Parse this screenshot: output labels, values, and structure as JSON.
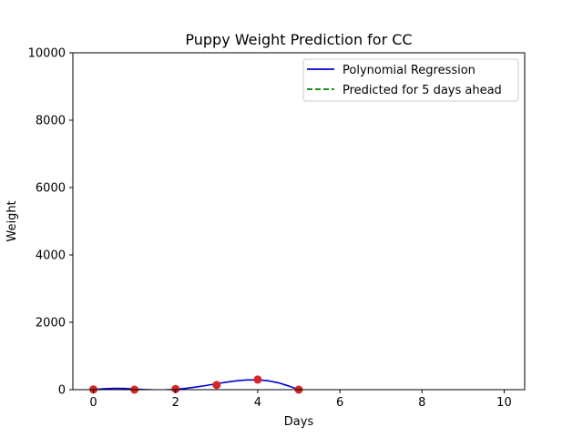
{
  "chart_data": {
    "type": "scatter",
    "title": "Puppy Weight Prediction for CC",
    "xlabel": "Days",
    "ylabel": "Weight",
    "xlim": [
      -0.5,
      10.5
    ],
    "ylim": [
      0,
      10000
    ],
    "x_ticks": [
      0,
      2,
      4,
      6,
      8,
      10
    ],
    "y_ticks": [
      0,
      2000,
      4000,
      6000,
      8000,
      10000
    ],
    "grid": false,
    "legend_position": "upper right",
    "series": [
      {
        "name": "",
        "kind": "scatter",
        "color": "#d62728",
        "x": [
          0,
          1,
          2,
          3,
          4,
          5
        ],
        "y": [
          5,
          0,
          20,
          140,
          300,
          0
        ]
      },
      {
        "name": "Polynomial Regression",
        "kind": "line",
        "color": "#0000cc",
        "dash": "solid",
        "x": [
          0,
          0.25,
          0.5,
          0.75,
          1,
          1.25,
          1.5,
          1.75,
          2,
          2.25,
          2.5,
          2.75,
          3,
          3.25,
          3.5,
          3.75,
          4,
          4.25,
          4.5,
          4.75,
          5
        ],
        "y": [
          5,
          25,
          38,
          35,
          18,
          2,
          -8,
          -6,
          10,
          38,
          80,
          125,
          175,
          225,
          265,
          290,
          290,
          265,
          205,
          110,
          0
        ]
      },
      {
        "name": "Predicted for 5 days ahead",
        "kind": "line",
        "color": "#008000",
        "dash": "dashed",
        "x": [],
        "y": []
      }
    ]
  }
}
